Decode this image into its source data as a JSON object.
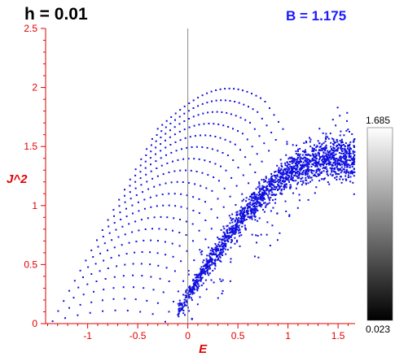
{
  "header": {
    "h_label": "h = 0.01",
    "b_label": "B = 1.175"
  },
  "colorbar": {
    "max_label": "1.685",
    "min_label": "0.023"
  },
  "colors": {
    "axis_text": "#e00000",
    "points": "#1010e0",
    "b_label": "#1a1aff"
  },
  "chart_data": {
    "type": "scatter",
    "title": "",
    "xlabel": "E",
    "ylabel": "J^2",
    "xlim": [
      -1.42,
      1.67
    ],
    "ylim": [
      0,
      2.5
    ],
    "x_ticks": [
      "-1",
      "-0.5",
      "0",
      "0.5",
      "1",
      "1.5"
    ],
    "y_ticks": [
      "0",
      "0.5",
      "1",
      "1.5",
      "2",
      "2.5"
    ],
    "grid": false,
    "colorbar_range": [
      0.023,
      1.685
    ],
    "structure": {
      "regular_region": {
        "description_levels": 20,
        "level_J2_min": 0.02,
        "level_J2_max": 1.65,
        "E_start_left": [
          -1.35,
          -0.3
        ],
        "E_end": [
          -0.1,
          0.95
        ]
      },
      "chaotic_band": {
        "E_range": [
          -0.1,
          1.67
        ],
        "J2_center_at_E_min": 0.1,
        "J2_center_at_E_max": 1.4
      }
    }
  }
}
